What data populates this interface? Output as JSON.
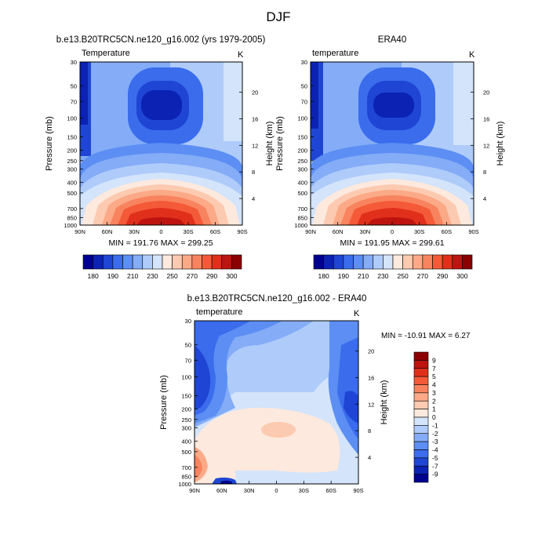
{
  "page_title": "DJF",
  "colors": {
    "abs_scale": [
      "#00008f",
      "#0b22b3",
      "#1f45d4",
      "#3a6cec",
      "#5c8ef3",
      "#84acf7",
      "#aecbfa",
      "#d3e4fb",
      "#fde9dd",
      "#fccab0",
      "#fba987",
      "#f8845f",
      "#f45a38",
      "#e0301b",
      "#bd1410",
      "#8b0000"
    ],
    "diff_scale": [
      "#00008f",
      "#0b22b3",
      "#1f45d4",
      "#3a6cec",
      "#5c8ef3",
      "#84acf7",
      "#aecbfa",
      "#d3e4fb",
      "#fde9dd",
      "#fccab0",
      "#fba987",
      "#f8845f",
      "#f45a38",
      "#e0301b",
      "#bd1410",
      "#8b0000"
    ]
  },
  "chart_data": [
    {
      "type": "heatmap",
      "id": "model",
      "title": "b.e13.B20TRC5CN.ne120_g16.002 (yrs 1979-2005)",
      "left_label": "Temperature",
      "right_label": "K",
      "xlabel": "",
      "ylabel": "Pressure (mb)",
      "y2label": "Height (km)",
      "x_ticks": [
        "90N",
        "60N",
        "30N",
        "0",
        "30S",
        "60S",
        "90S"
      ],
      "y_ticks": [
        30,
        50,
        70,
        100,
        150,
        200,
        250,
        300,
        400,
        500,
        700,
        850,
        1000
      ],
      "y2_ticks": [
        4,
        8,
        12,
        16,
        20
      ],
      "stats": "MIN = 191.76  MAX = 299.25",
      "colorbar_labels": [
        "180",
        "190",
        "210",
        "230",
        "250",
        "270",
        "290",
        "300"
      ]
    },
    {
      "type": "heatmap",
      "id": "obs",
      "title": "ERA40",
      "left_label": "temperature",
      "right_label": "K",
      "xlabel": "",
      "ylabel": "Pressure (mb)",
      "y2label": "Height (km)",
      "x_ticks": [
        "90N",
        "60N",
        "30N",
        "0",
        "30S",
        "60S",
        "90S"
      ],
      "y_ticks": [
        30,
        50,
        70,
        100,
        150,
        200,
        250,
        300,
        400,
        500,
        700,
        850,
        1000
      ],
      "y2_ticks": [
        4,
        8,
        12,
        16,
        20
      ],
      "stats": "MIN = 191.95  MAX = 299.61",
      "colorbar_labels": [
        "180",
        "190",
        "210",
        "230",
        "250",
        "270",
        "290",
        "300"
      ]
    },
    {
      "type": "heatmap",
      "id": "diff",
      "title": "b.e13.B20TRC5CN.ne120_g16.002 - ERA40",
      "left_label": "temperature",
      "right_label": "K",
      "xlabel": "",
      "ylabel": "Pressure (mb)",
      "y2label": "Height (km)",
      "x_ticks": [
        "90N",
        "60N",
        "30N",
        "0",
        "30S",
        "60S",
        "90S"
      ],
      "y_ticks": [
        30,
        50,
        70,
        100,
        150,
        200,
        250,
        300,
        400,
        500,
        700,
        850,
        1000
      ],
      "y2_ticks": [
        4,
        8,
        12,
        16,
        20
      ],
      "stats": "MIN = -10.91  MAX =   6.27",
      "colorbar_labels": [
        "9",
        "7",
        "5",
        "4",
        "3",
        "2",
        "1",
        "0",
        "-1",
        "-2",
        "-3",
        "-4",
        "-5",
        "-7",
        "-9"
      ]
    }
  ]
}
